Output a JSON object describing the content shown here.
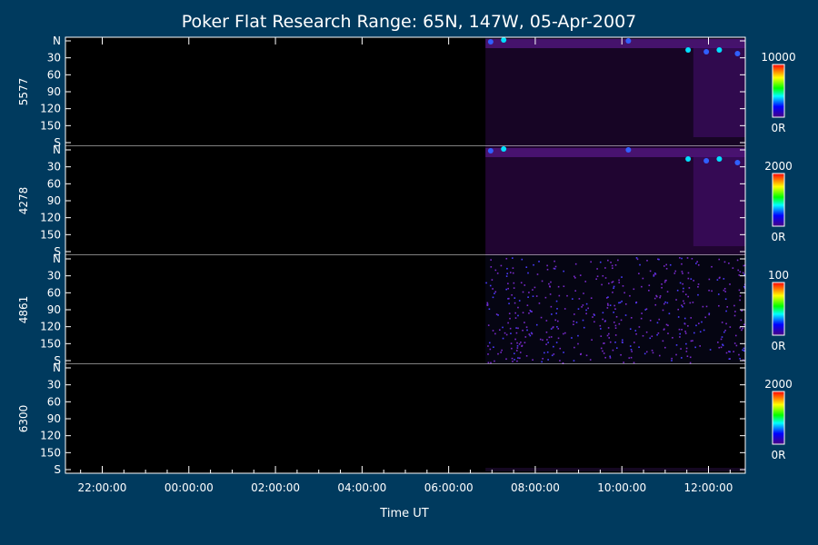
{
  "chart_data": {
    "type": "heatmap",
    "title": "Poker Flat Research Range: 65N, 147W, 05-Apr-2007",
    "xlabel": "Time UT",
    "x_tick_labels": [
      "22:00:00",
      "00:00:00",
      "02:00:00",
      "04:00:00",
      "06:00:00",
      "08:00:00",
      "10:00:00",
      "12:00:00"
    ],
    "x_range_hours": [
      21.15,
      36.85
    ],
    "data_start_hours": 30.85,
    "y_tick_labels": [
      "N",
      "30",
      "60",
      "90",
      "120",
      "150",
      "S"
    ],
    "y_range_deg": [
      0,
      180
    ],
    "colorbar_colors": [
      "#ff0000",
      "#ffff00",
      "#00ff00",
      "#00ffff",
      "#0000ff",
      "#4b0082"
    ],
    "series": [
      {
        "name": "5577",
        "colorbar_max": "10000",
        "colorbar_min": "0R",
        "base_color": "#2a0a44",
        "pattern": "diffuse-with-north-spots"
      },
      {
        "name": "4278",
        "colorbar_max": "2000",
        "colorbar_min": "0R",
        "base_color": "#3a0a5a",
        "pattern": "diffuse-with-north-spots"
      },
      {
        "name": "4861",
        "colorbar_max": "100",
        "colorbar_min": "0R",
        "base_color": "#0a0a20",
        "pattern": "noise"
      },
      {
        "name": "6300",
        "colorbar_max": "2000",
        "colorbar_min": "0R",
        "base_color": "#000000",
        "pattern": "faint-south"
      }
    ]
  }
}
